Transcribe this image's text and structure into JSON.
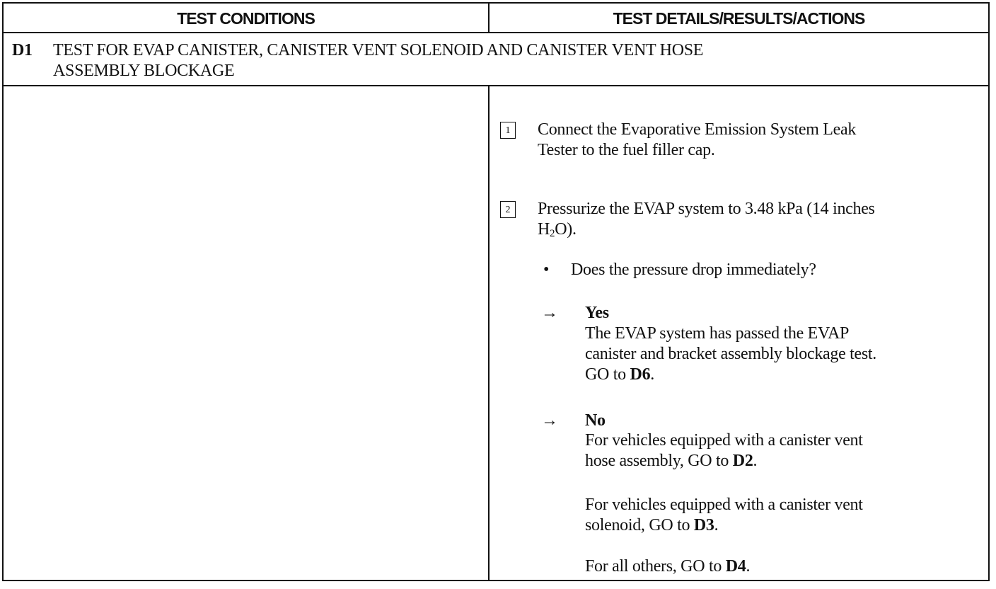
{
  "header": {
    "left": "TEST CONDITIONS",
    "right": "TEST DETAILS/RESULTS/ACTIONS"
  },
  "section": {
    "id": "D1",
    "title_line1": "TEST FOR EVAP CANISTER, CANISTER VENT SOLENOID AND CANISTER VENT HOSE",
    "title_line2": "ASSEMBLY BLOCKAGE"
  },
  "steps": [
    {
      "number": "1",
      "line1": "Connect the Evaporative Emission System Leak",
      "line2": "Tester to the fuel filler cap."
    },
    {
      "number": "2",
      "line1": "Pressurize the EVAP system to 3.48 kPa (14 inches",
      "line2_pre": "H",
      "line2_sub": "2",
      "line2_post": "O)."
    }
  ],
  "question": "Does the pressure drop immediately?",
  "yes": {
    "label": "Yes",
    "line1": "The EVAP system has passed the EVAP",
    "line2": "canister and bracket assembly blockage test.",
    "line3_pre": "GO to ",
    "line3_ref": "D6",
    "line3_post": "."
  },
  "no": {
    "label": "No",
    "a_line1": "For vehicles equipped with a canister vent",
    "a_line2_pre": "hose assembly, GO to ",
    "a_ref": "D2",
    "b_line1": "For vehicles equipped with a canister vent",
    "b_line2_pre": "solenoid, GO to ",
    "b_ref": "D3",
    "c_pre": "For all others, GO to ",
    "c_ref": "D4",
    "period": "."
  },
  "symbols": {
    "arrow": "→",
    "bullet": "•"
  }
}
